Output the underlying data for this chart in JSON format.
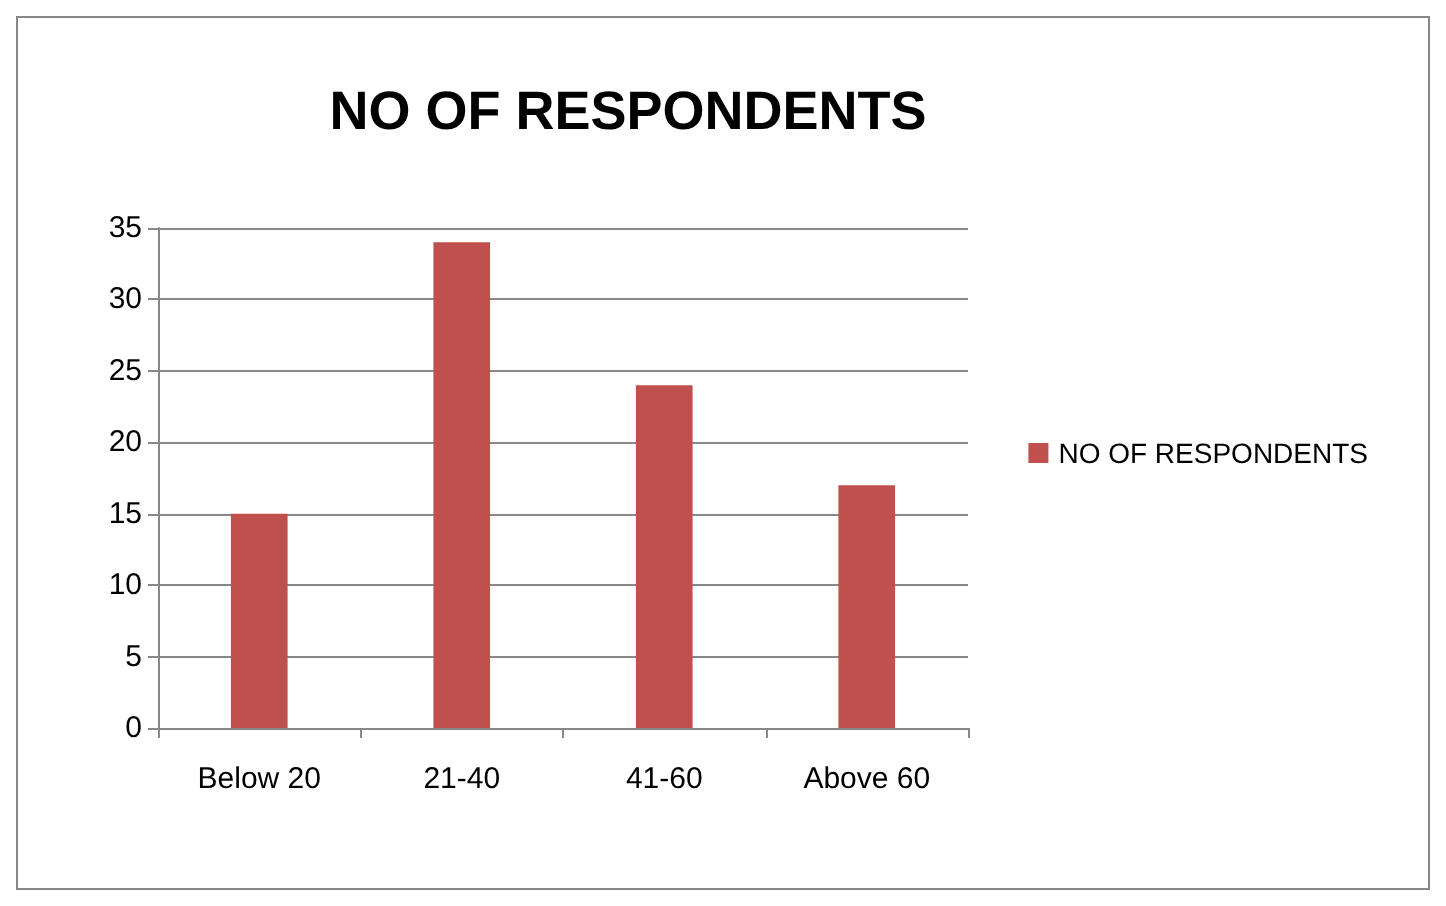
{
  "chart_data": {
    "type": "bar",
    "title": "NO OF RESPONDENTS",
    "categories": [
      "Below 20",
      "21-40",
      "41-60",
      "Above 60"
    ],
    "series": [
      {
        "name": "NO OF RESPONDENTS",
        "color": "#c0504d",
        "values": [
          15,
          34,
          24,
          17
        ]
      }
    ],
    "ylim": [
      0,
      35
    ],
    "yticks": [
      0,
      5,
      10,
      15,
      20,
      25,
      30,
      35
    ],
    "grid": "y",
    "legend": "right"
  }
}
